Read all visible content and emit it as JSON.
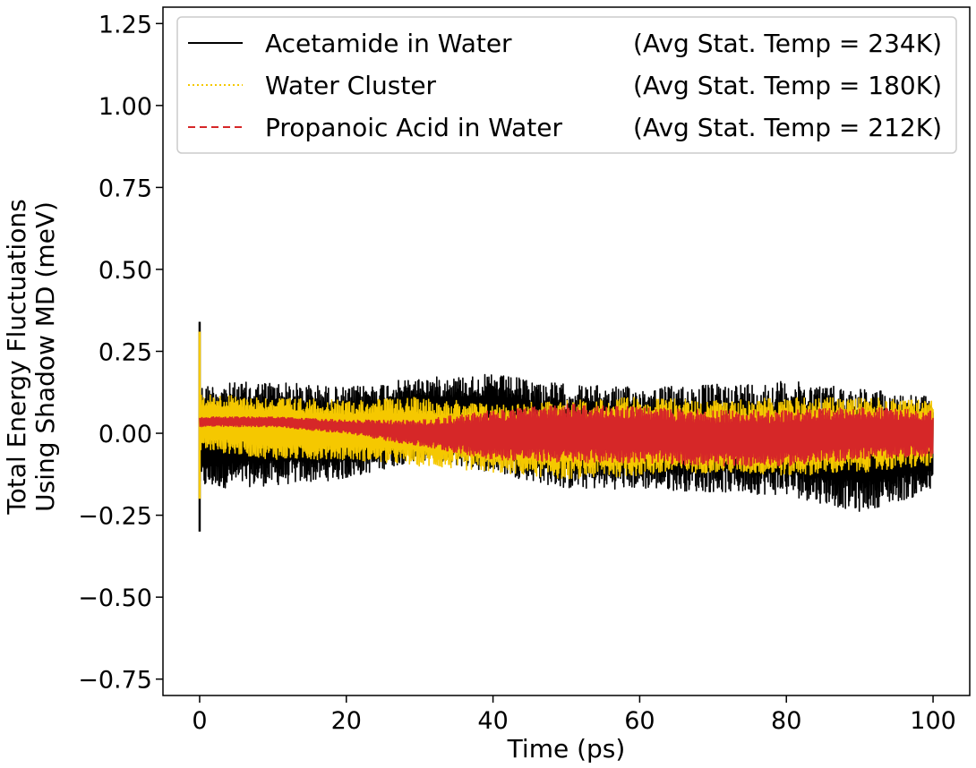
{
  "chart_data": {
    "type": "line",
    "title": "",
    "xlabel": "Time (ps)",
    "ylabel_line1": "Total Energy Fluctuations",
    "ylabel_line2": "Using Shadow MD (meV)",
    "xlim": [
      -5,
      105
    ],
    "ylim": [
      -0.8,
      1.3
    ],
    "x_ticks": [
      0,
      20,
      40,
      60,
      80,
      100
    ],
    "x_tick_labels": [
      "0",
      "20",
      "40",
      "60",
      "80",
      "100"
    ],
    "y_ticks": [
      -0.75,
      -0.5,
      -0.25,
      0.0,
      0.25,
      0.5,
      0.75,
      1.0,
      1.25
    ],
    "y_tick_labels": [
      "−0.75",
      "−0.50",
      "−0.25",
      "0.00",
      "0.25",
      "0.50",
      "0.75",
      "1.00",
      "1.25"
    ],
    "grid": false,
    "legend_position": "top-right",
    "series": [
      {
        "name": "Acetamide in Water",
        "temp_label": "(Avg Stat. Temp = 234K)",
        "color": "#000000",
        "line_style": "solid",
        "envelope": {
          "x": [
            0,
            10,
            20,
            30,
            40,
            50,
            60,
            70,
            80,
            90,
            100
          ],
          "upper": [
            0.15,
            0.16,
            0.14,
            0.17,
            0.18,
            0.15,
            0.14,
            0.15,
            0.16,
            0.14,
            0.11
          ],
          "lower": [
            -0.17,
            -0.16,
            -0.14,
            -0.08,
            -0.12,
            -0.17,
            -0.17,
            -0.18,
            -0.19,
            -0.24,
            -0.18
          ]
        },
        "start_spike": [
          -0.3,
          0.34
        ]
      },
      {
        "name": "Water Cluster",
        "temp_label": "(Avg Stat. Temp = 180K)",
        "color": "#f5c800",
        "line_style": "dotted",
        "envelope": {
          "x": [
            0,
            10,
            20,
            30,
            40,
            50,
            60,
            70,
            80,
            90,
            100
          ],
          "upper": [
            0.12,
            0.11,
            0.1,
            0.11,
            0.09,
            0.1,
            0.11,
            0.1,
            0.11,
            0.11,
            0.1
          ],
          "lower": [
            -0.05,
            -0.08,
            -0.08,
            -0.1,
            -0.12,
            -0.14,
            -0.13,
            -0.12,
            -0.13,
            -0.12,
            -0.1
          ]
        },
        "start_spike": [
          -0.2,
          0.31
        ]
      },
      {
        "name": "Propanoic Acid in Water",
        "temp_label": "(Avg Stat. Temp = 212K)",
        "color": "#d62728",
        "line_style": "dashed",
        "envelope": {
          "x": [
            0,
            10,
            20,
            30,
            40,
            50,
            60,
            70,
            80,
            90,
            100
          ],
          "upper": [
            0.05,
            0.05,
            0.04,
            0.04,
            0.07,
            0.09,
            0.08,
            0.07,
            0.07,
            0.08,
            0.07
          ],
          "lower": [
            0.02,
            0.02,
            0.0,
            -0.04,
            -0.08,
            -0.09,
            -0.09,
            -0.1,
            -0.1,
            -0.08,
            -0.07
          ]
        }
      }
    ]
  }
}
